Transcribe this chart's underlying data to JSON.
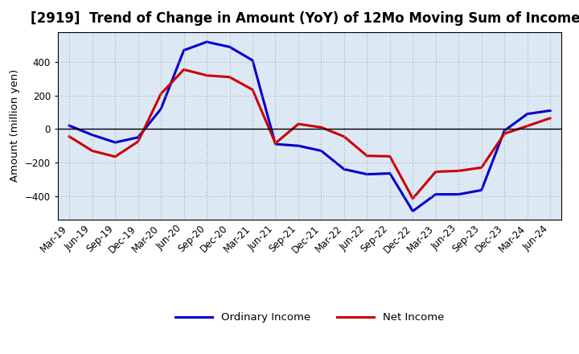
{
  "title": "[2919]  Trend of Change in Amount (YoY) of 12Mo Moving Sum of Incomes",
  "ylabel": "Amount (million yen)",
  "background_color": "#ffffff",
  "plot_bg_color": "#dce9f5",
  "grid_color": "#aaaaaa",
  "title_fontsize": 12,
  "label_fontsize": 9.5,
  "tick_fontsize": 8.5,
  "ordinary_income_color": "#0000cc",
  "net_income_color": "#cc0000",
  "ordinary_income_linewidth": 2.2,
  "net_income_linewidth": 2.2,
  "ylim": [
    -540,
    580
  ],
  "yticks": [
    -400,
    -200,
    0,
    200,
    400
  ],
  "x_labels": [
    "Mar-19",
    "Jun-19",
    "Sep-19",
    "Dec-19",
    "Mar-20",
    "Jun-20",
    "Sep-20",
    "Dec-20",
    "Mar-21",
    "Jun-21",
    "Sep-21",
    "Dec-21",
    "Mar-22",
    "Jun-22",
    "Sep-22",
    "Dec-22",
    "Mar-23",
    "Jun-23",
    "Sep-23",
    "Dec-23",
    "Mar-24",
    "Jun-24"
  ],
  "ordinary_income": [
    20,
    -35,
    -80,
    -50,
    120,
    470,
    520,
    490,
    410,
    -90,
    -100,
    -130,
    -240,
    -270,
    -265,
    -490,
    -390,
    -390,
    -365,
    -10,
    90,
    110
  ],
  "net_income": [
    -45,
    -130,
    -165,
    -75,
    210,
    355,
    320,
    310,
    235,
    -85,
    30,
    10,
    -45,
    -160,
    -163,
    -415,
    -255,
    -250,
    -230,
    -28,
    18,
    65
  ]
}
